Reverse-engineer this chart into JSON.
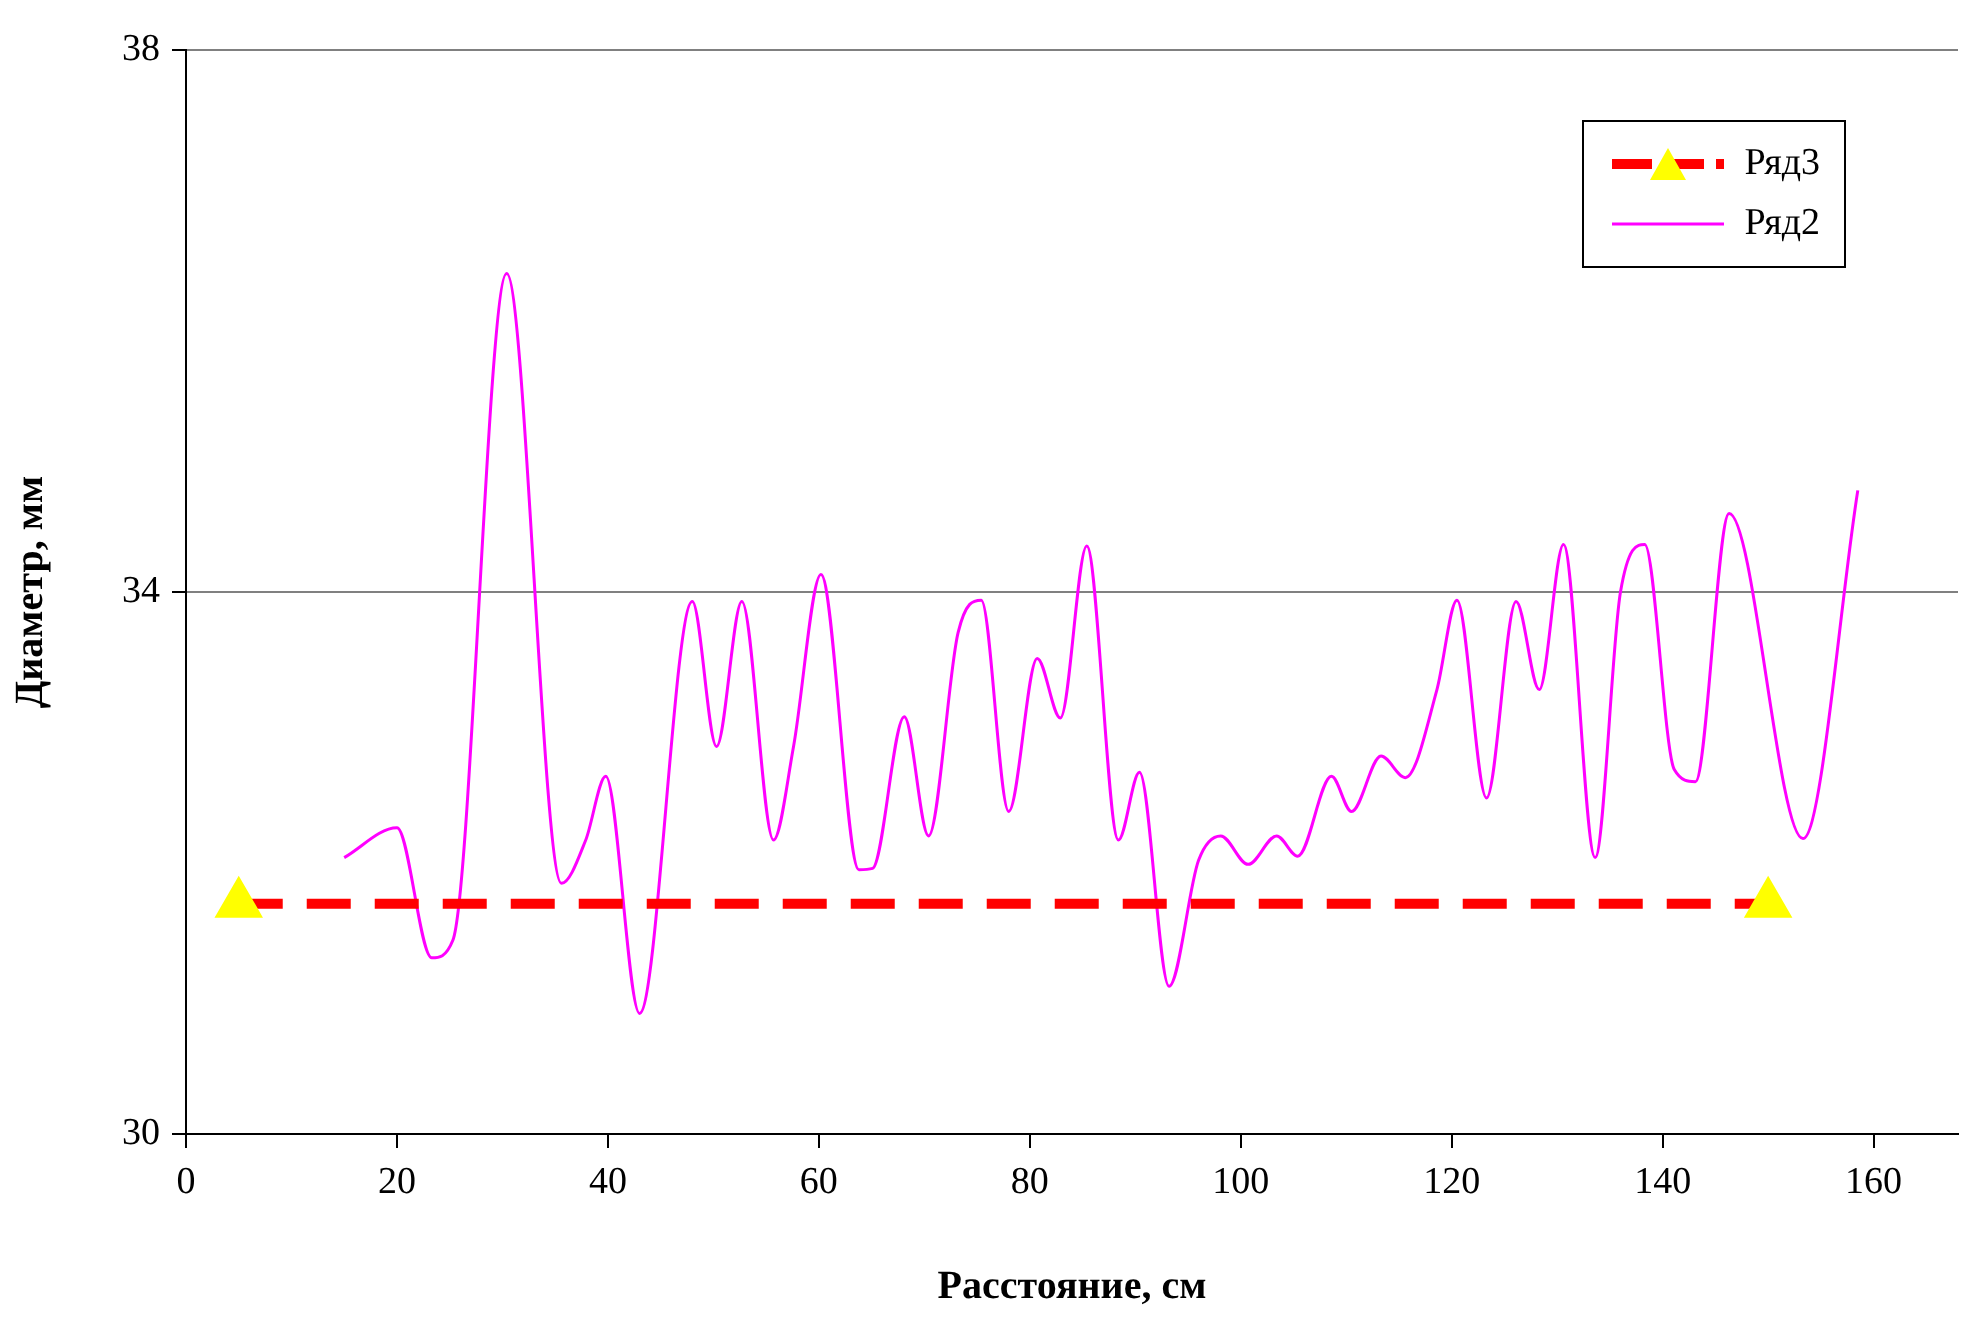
{
  "chart_data": {
    "type": "line",
    "xlabel": "Расстояние, см",
    "ylabel": "Диаметр, мм",
    "xlim": [
      0,
      168
    ],
    "xticks": [
      0,
      20,
      40,
      60,
      80,
      100,
      120,
      140,
      160
    ],
    "ylim": [
      30,
      38
    ],
    "yticks": [
      30,
      34,
      38
    ],
    "grid": "y",
    "legend": "top right",
    "series": [
      {
        "name": "Ряд3",
        "color": "#ff0000",
        "colors": [
          "#ffff00",
          "#ffff00"
        ],
        "marker": "triangle",
        "line_style": "dashed",
        "x": [
          5,
          150
        ],
        "values": [
          31.7,
          31.7
        ]
      },
      {
        "name": "Ряд2",
        "color": "#ff00ff",
        "marker": "none",
        "line_style": "solid",
        "x": [
          15,
          20,
          23.3,
          25.3,
          30.4,
          35.6,
          37.9,
          39.8,
          43,
          48,
          50.3,
          52.7,
          55.7,
          57.6,
          60.2,
          63.8,
          65.1,
          68.1,
          70.4,
          73.2,
          75.4,
          78,
          80.7,
          82.9,
          85.4,
          88.4,
          90.4,
          93.2,
          96,
          98.1,
          100.7,
          103.4,
          105.4,
          108.6,
          110.5,
          113.3,
          115.6,
          118.6,
          120.5,
          123.3,
          126.1,
          128.3,
          130.6,
          133.6,
          136,
          138.3,
          141.1,
          143.1,
          146.3,
          153.3,
          158.5
        ],
        "values": [
          32.04,
          32.26,
          31.3,
          31.43,
          36.35,
          31.85,
          32.17,
          32.64,
          30.89,
          33.93,
          32.86,
          33.93,
          32.17,
          32.86,
          34.13,
          31.95,
          31.96,
          33.08,
          32.2,
          33.7,
          33.94,
          32.38,
          33.51,
          33.07,
          34.34,
          32.17,
          32.67,
          31.09,
          32.02,
          32.2,
          31.99,
          32.2,
          32.05,
          32.64,
          32.38,
          32.79,
          32.63,
          33.28,
          33.94,
          32.48,
          33.93,
          33.28,
          34.35,
          32.04,
          34.0,
          34.35,
          32.69,
          32.6,
          34.58,
          32.18,
          34.75
        ]
      }
    ]
  }
}
